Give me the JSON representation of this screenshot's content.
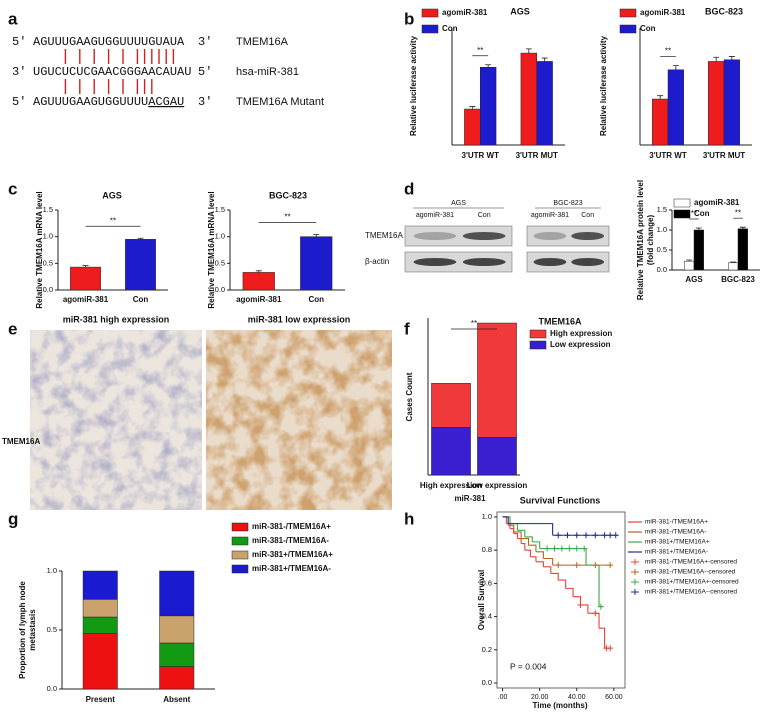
{
  "panel_labels": [
    "a",
    "b",
    "c",
    "d",
    "e",
    "f",
    "g",
    "h"
  ],
  "sequences": [
    {
      "start": "5'",
      "seq": "AGUUUGAAGUGGUUUUGUAUA",
      "end": "3'",
      "name": "TMEM16A"
    },
    {
      "start": "3'",
      "seq": "UGUCUCUCGAACGGGAACAUAU",
      "end": "5'",
      "name": "hsa-miR-381"
    },
    {
      "start": "5'",
      "seq": "AGUUUGAAGUGGUUUU",
      "mutated": "ACGAU",
      "end": "3'",
      "name": "TMEM16A Mutant"
    }
  ],
  "blot": {
    "groups": [
      {
        "title": "AGS",
        "lanes": [
          "agomiR-381",
          "Con"
        ]
      },
      {
        "title": "BGC-823",
        "lanes": [
          "agomiR-381",
          "Con"
        ]
      }
    ],
    "proteins": [
      "TMEM16A",
      "β-actin"
    ]
  },
  "ihc": {
    "titles": [
      "miR-381 high expression",
      "miR-381 low expression"
    ],
    "row_label": "TMEM16A"
  },
  "chart_data": [
    {
      "type": "bar",
      "title": "AGS",
      "ylabel": "Relative luciferase activity",
      "categories": [
        "3'UTR WT",
        "3'UTR MUT"
      ],
      "series": [
        {
          "name": "agomiR-381",
          "color": "#ee1c1c",
          "values": [
            0.43,
            1.1
          ],
          "errors": [
            0.03,
            0.05
          ]
        },
        {
          "name": "Con",
          "color": "#1c1ccc",
          "values": [
            0.93,
            1.0
          ],
          "errors": [
            0.03,
            0.04
          ]
        }
      ],
      "ylim": [
        0,
        1.4
      ],
      "annotations": [
        "**"
      ]
    },
    {
      "type": "bar",
      "title": "BGC-823",
      "ylabel": "Relative luciferase activity",
      "categories": [
        "3'UTR WT",
        "3'UTR MUT"
      ],
      "series": [
        {
          "name": "agomiR-381",
          "color": "#ee1c1c",
          "values": [
            0.55,
            1.0
          ],
          "errors": [
            0.04,
            0.05
          ]
        },
        {
          "name": "Con",
          "color": "#1c1ccc",
          "values": [
            0.9,
            1.02
          ],
          "errors": [
            0.05,
            0.04
          ]
        }
      ],
      "ylim": [
        0,
        1.4
      ],
      "annotations": [
        "**"
      ]
    },
    {
      "type": "bar",
      "title": "AGS",
      "ylabel": "Relative TMEM16A mRNA level",
      "categories": [
        "agomiR-381",
        "Con"
      ],
      "values": [
        0.43,
        0.95
      ],
      "errors": [
        0.03,
        0.02
      ],
      "colors": [
        "#ee1c1c",
        "#1c1ccc"
      ],
      "ylim": [
        0,
        1.5
      ],
      "yticks": [
        {
          "value": 0,
          "label": "0.0"
        },
        0.5,
        {
          "value": 1,
          "label": "1.0"
        },
        1.5
      ],
      "annotations": [
        "**"
      ]
    },
    {
      "type": "bar",
      "title": "BGC-823",
      "ylabel": "Relative TMEM16A mRNA level",
      "categories": [
        "agomiR-381",
        "Con"
      ],
      "values": [
        0.33,
        1.0
      ],
      "errors": [
        0.03,
        0.04
      ],
      "colors": [
        "#ee1c1c",
        "#1c1ccc"
      ],
      "ylim": [
        0,
        1.5
      ],
      "yticks": [
        {
          "value": 0,
          "label": "0.0"
        },
        0.5,
        {
          "value": 1,
          "label": "1.0"
        },
        1.5
      ],
      "annotations": [
        "**"
      ]
    },
    {
      "type": "bar",
      "ylabel": [
        "Relative TMEM16A protein level",
        "(fold change)"
      ],
      "categories": [
        "AGS",
        "BGC-823"
      ],
      "series": [
        {
          "name": "agomiR-381",
          "color": "#ffffff",
          "values": [
            0.22,
            0.18
          ],
          "errors": [
            0.03,
            0.02
          ]
        },
        {
          "name": "Con",
          "color": "#000000",
          "values": [
            1.0,
            1.03
          ],
          "errors": [
            0.05,
            0.04
          ]
        }
      ],
      "ylim": [
        0,
        1.5
      ],
      "yticks": [
        {
          "value": 0,
          "label": "0.0"
        },
        0.5,
        {
          "value": 1,
          "label": "1.0"
        },
        1.5
      ],
      "annotations": [
        "**",
        "**"
      ]
    },
    {
      "type": "stacked_bar",
      "title": "TMEM16A",
      "xlabel": "miR-381",
      "ylabel": "Cases Count",
      "categories": [
        "High expression",
        "Low expression"
      ],
      "series": [
        {
          "name": "High expression",
          "color": "#f0393a",
          "values": [
            35,
            91
          ]
        },
        {
          "name": "Low expression",
          "color": "#3a1fd0",
          "values": [
            38,
            30
          ]
        }
      ],
      "stack_from": "last",
      "ylim": [
        0,
        125
      ],
      "annotations": [
        "**"
      ]
    },
    {
      "type": "stacked_bar",
      "ylabel": [
        "Proportion of lymph node",
        "metastasis"
      ],
      "categories": [
        "Present",
        "Absent"
      ],
      "series": [
        {
          "name": "miR-381-/TMEM16A+",
          "color": "#ee1111",
          "values": [
            0.47,
            0.19
          ]
        },
        {
          "name": "miR-381-/TMEM16A-",
          "color": "#129a12",
          "values": [
            0.14,
            0.2
          ]
        },
        {
          "name": "miR-381+/TMEM16A+",
          "color": "#c9a36b",
          "values": [
            0.15,
            0.23
          ]
        },
        {
          "name": "miR-381+/TMEM16A-",
          "color": "#1a1ad0",
          "values": [
            0.24,
            0.38
          ]
        }
      ],
      "stack_from": "first",
      "ylim": [
        0,
        1
      ],
      "yticks": [
        {
          "value": 0,
          "label": "0.0"
        },
        0.5,
        {
          "value": 1,
          "label": "1.0"
        }
      ]
    },
    {
      "type": "line",
      "step": true,
      "title": "Survival Functions",
      "xlabel": "Time (months)",
      "ylabel": "Overall Survival",
      "annotation": "P = 0.004",
      "series": [
        {
          "name": "miR-381-/TMEM16A+",
          "color": "#e8413a",
          "x": [
            0,
            2,
            4,
            6,
            8,
            10,
            12,
            15,
            18,
            22,
            26,
            30,
            34,
            38,
            42,
            46,
            50,
            52,
            55,
            58
          ],
          "values": [
            1,
            0.96,
            0.93,
            0.9,
            0.87,
            0.84,
            0.8,
            0.76,
            0.73,
            0.7,
            0.66,
            0.62,
            0.57,
            0.52,
            0.47,
            0.42,
            0.42,
            0.33,
            0.21,
            0.21
          ]
        },
        {
          "name": "miR-381-/TMEM16A-",
          "color": "#b5651d",
          "x": [
            0,
            3,
            6,
            10,
            14,
            18,
            22,
            27,
            58
          ],
          "values": [
            1,
            0.95,
            0.91,
            0.87,
            0.83,
            0.79,
            0.75,
            0.71,
            0.71
          ]
        },
        {
          "name": "miR-381+/TMEM16A+",
          "color": "#3aa84a",
          "x": [
            0,
            4,
            8,
            12,
            16,
            20,
            45,
            52,
            54
          ],
          "values": [
            1,
            0.96,
            0.92,
            0.88,
            0.85,
            0.81,
            0.71,
            0.46,
            0.46
          ]
        },
        {
          "name": "miR-381+/TMEM16A-",
          "color": "#1f2a8c",
          "x": [
            0,
            3,
            27,
            62
          ],
          "values": [
            1,
            0.96,
            0.89,
            0.89
          ]
        },
        {
          "name": "miR-381-/TMEM16A+-censored",
          "color": "#e8413a",
          "marker": "+",
          "x": [
            42,
            50,
            56,
            58
          ],
          "values": [
            0.47,
            0.42,
            0.21,
            0.21
          ]
        },
        {
          "name": "miR-381-/TMEM16A--censored",
          "color": "#b5651d",
          "marker": "+",
          "x": [
            30,
            40,
            50,
            58
          ],
          "values": [
            0.71,
            0.71,
            0.71,
            0.71
          ]
        },
        {
          "name": "miR-381+/TMEM16A+-censored",
          "color": "#3aa84a",
          "marker": "+",
          "x": [
            24,
            28,
            32,
            36,
            40,
            44,
            53
          ],
          "values": [
            0.81,
            0.81,
            0.81,
            0.81,
            0.81,
            0.81,
            0.46
          ]
        },
        {
          "name": "miR-381+/TMEM16A--censored",
          "color": "#1f2a8c",
          "marker": "+",
          "x": [
            30,
            35,
            40,
            45,
            50,
            55,
            58,
            61
          ],
          "values": [
            0.89,
            0.89,
            0.89,
            0.89,
            0.89,
            0.89,
            0.89,
            0.89
          ]
        }
      ],
      "xlim": [
        -3,
        66
      ],
      "xticks": [
        {
          "value": 0,
          "label": ".00"
        },
        {
          "value": 20,
          "label": "20.00"
        },
        {
          "value": 40,
          "label": "40.00"
        },
        {
          "value": 60,
          "label": "60.00"
        }
      ],
      "ylim": [
        -0.03,
        1.03
      ],
      "yticks": [
        {
          "value": 0,
          "label": "0.0"
        },
        0.2,
        0.4,
        0.6,
        0.8,
        {
          "value": 1,
          "label": "1.0"
        }
      ]
    }
  ]
}
